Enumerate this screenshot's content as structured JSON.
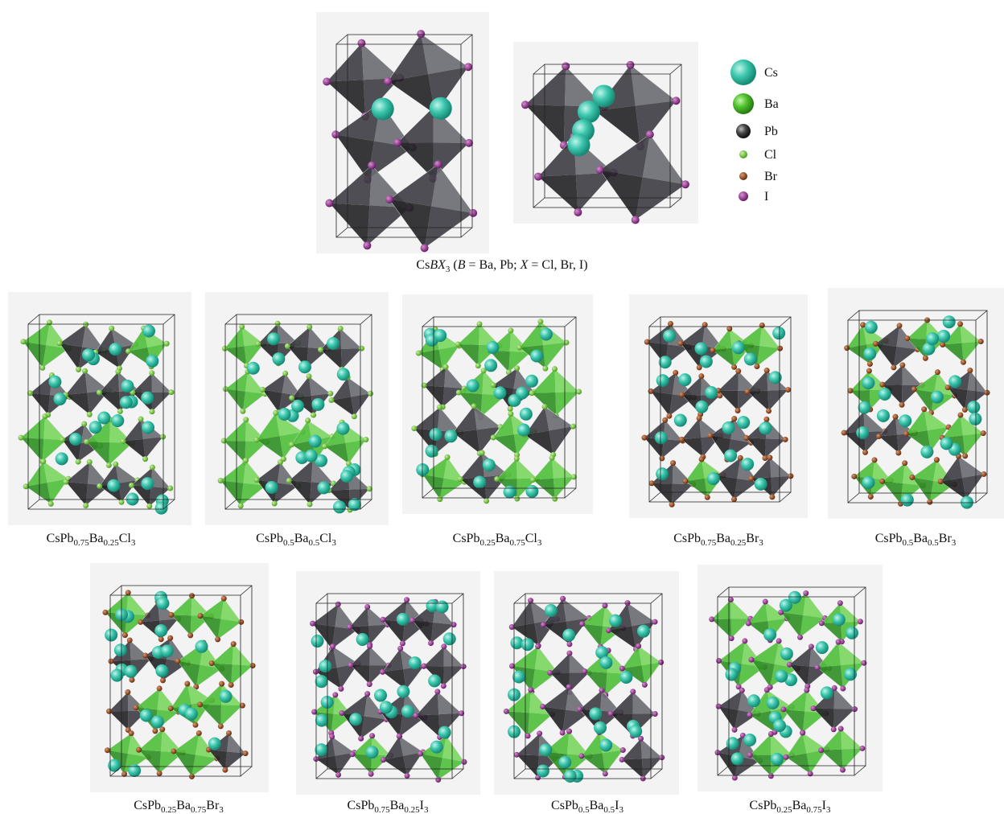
{
  "legend": {
    "items": [
      "Cs",
      "Ba",
      "Pb",
      "Cl",
      "Br",
      "I"
    ]
  },
  "caption": [
    {
      "text": "Cs",
      "style": "roman"
    },
    {
      "text": "BX",
      "style": "italic"
    },
    {
      "text": "3",
      "style": "sub"
    },
    {
      "text": " (",
      "style": "roman"
    },
    {
      "text": "B",
      "style": "italic"
    },
    {
      "text": " = Ba, Pb; ",
      "style": "roman"
    },
    {
      "text": "X",
      "style": "italic"
    },
    {
      "text": " = Cl, Br, I)",
      "style": "roman"
    }
  ],
  "panels": [
    [
      "CsPb",
      "0.75",
      "Ba",
      "0.25",
      "Cl",
      "3"
    ],
    [
      "CsPb",
      "0.5",
      "Ba",
      "0.5",
      "Cl",
      "3"
    ],
    [
      "CsPb",
      "0.25",
      "Ba",
      "0.75",
      "Cl",
      "3"
    ],
    [
      "CsPb",
      "0.75",
      "Ba",
      "0.25",
      "Br",
      "3"
    ],
    [
      "CsPb",
      "0.5",
      "Ba",
      "0.5",
      "Br",
      "3"
    ],
    [
      "CsPb",
      "0.25",
      "Ba",
      "0.75",
      "Br",
      "3"
    ],
    [
      "CsPb",
      "0.75",
      "Ba",
      "0.25",
      "I",
      "3"
    ],
    [
      "CsPb",
      "0.5",
      "Ba",
      "0.5",
      "I",
      "3"
    ],
    [
      "CsPb",
      "0.25",
      "Ba",
      "0.75",
      "I",
      "3"
    ]
  ]
}
